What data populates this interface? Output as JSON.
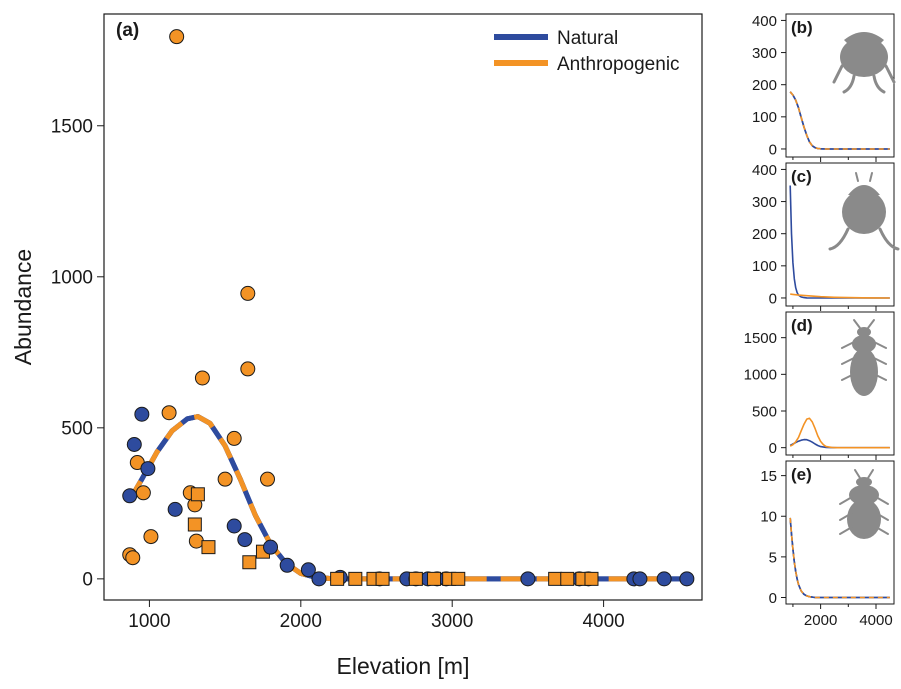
{
  "colors": {
    "natural": "#2E4B9E",
    "anthropogenic": "#F39325",
    "silhouette": "#8a8a8a",
    "axis": "#1a1a1a"
  },
  "chart_data": [
    {
      "panel": "(a)",
      "type": "scatter",
      "xlabel": "Elevation [m]",
      "ylabel": "Abundance",
      "xlim": [
        700,
        4650
      ],
      "ylim": [
        -70,
        1870
      ],
      "xticks": [
        1000,
        2000,
        3000,
        4000
      ],
      "yticks": [
        0,
        500,
        1000,
        1500
      ],
      "legend": {
        "placement": "top-right",
        "entries": [
          "Natural",
          "Anthropogenic"
        ]
      },
      "curves": [
        {
          "name": "Natural",
          "style": "solid",
          "x": [
            870,
            950,
            1050,
            1150,
            1250,
            1320,
            1400,
            1500,
            1600,
            1700,
            1800,
            1900,
            2000,
            2100,
            2200,
            2300,
            2500,
            3000,
            3500,
            4000,
            4550
          ],
          "y": [
            260,
            330,
            420,
            490,
            530,
            537,
            515,
            440,
            330,
            210,
            115,
            52,
            18,
            5,
            1,
            0,
            0,
            0,
            0,
            0,
            0
          ]
        },
        {
          "name": "Anthropogenic",
          "style": "dashed",
          "x": [
            870,
            950,
            1050,
            1150,
            1250,
            1320,
            1400,
            1500,
            1600,
            1700,
            1800,
            1900,
            2000,
            2100,
            2200,
            2300,
            2500,
            3000,
            3500,
            4000,
            4550
          ],
          "y": [
            260,
            330,
            420,
            490,
            530,
            537,
            515,
            440,
            330,
            210,
            115,
            52,
            18,
            5,
            1,
            0,
            0,
            0,
            0,
            0,
            0
          ]
        }
      ],
      "points": [
        {
          "x": 1180,
          "y": 1795,
          "group": "anthropogenic",
          "shape": "circle"
        },
        {
          "x": 1650,
          "y": 945,
          "group": "anthropogenic",
          "shape": "circle"
        },
        {
          "x": 1650,
          "y": 695,
          "group": "anthropogenic",
          "shape": "circle"
        },
        {
          "x": 1350,
          "y": 665,
          "group": "anthropogenic",
          "shape": "circle"
        },
        {
          "x": 1130,
          "y": 550,
          "group": "anthropogenic",
          "shape": "circle"
        },
        {
          "x": 1560,
          "y": 465,
          "group": "anthropogenic",
          "shape": "circle"
        },
        {
          "x": 920,
          "y": 385,
          "group": "anthropogenic",
          "shape": "circle"
        },
        {
          "x": 1780,
          "y": 330,
          "group": "anthropogenic",
          "shape": "circle"
        },
        {
          "x": 1500,
          "y": 330,
          "group": "anthropogenic",
          "shape": "circle"
        },
        {
          "x": 1270,
          "y": 285,
          "group": "anthropogenic",
          "shape": "circle"
        },
        {
          "x": 960,
          "y": 285,
          "group": "anthropogenic",
          "shape": "circle"
        },
        {
          "x": 1300,
          "y": 245,
          "group": "anthropogenic",
          "shape": "circle"
        },
        {
          "x": 1010,
          "y": 140,
          "group": "anthropogenic",
          "shape": "circle"
        },
        {
          "x": 1310,
          "y": 125,
          "group": "anthropogenic",
          "shape": "circle"
        },
        {
          "x": 870,
          "y": 80,
          "group": "anthropogenic",
          "shape": "circle"
        },
        {
          "x": 890,
          "y": 70,
          "group": "anthropogenic",
          "shape": "circle"
        },
        {
          "x": 1320,
          "y": 280,
          "group": "anthropogenic",
          "shape": "square"
        },
        {
          "x": 1300,
          "y": 180,
          "group": "anthropogenic",
          "shape": "square"
        },
        {
          "x": 1390,
          "y": 105,
          "group": "anthropogenic",
          "shape": "square"
        },
        {
          "x": 1750,
          "y": 90,
          "group": "anthropogenic",
          "shape": "square"
        },
        {
          "x": 1660,
          "y": 55,
          "group": "anthropogenic",
          "shape": "square"
        },
        {
          "x": 950,
          "y": 545,
          "group": "natural",
          "shape": "circle"
        },
        {
          "x": 900,
          "y": 445,
          "group": "natural",
          "shape": "circle"
        },
        {
          "x": 990,
          "y": 365,
          "group": "natural",
          "shape": "circle"
        },
        {
          "x": 870,
          "y": 275,
          "group": "natural",
          "shape": "circle"
        },
        {
          "x": 1170,
          "y": 230,
          "group": "natural",
          "shape": "circle"
        },
        {
          "x": 1560,
          "y": 175,
          "group": "natural",
          "shape": "circle"
        },
        {
          "x": 1630,
          "y": 130,
          "group": "natural",
          "shape": "circle"
        },
        {
          "x": 1800,
          "y": 105,
          "group": "natural",
          "shape": "circle"
        },
        {
          "x": 1910,
          "y": 45,
          "group": "natural",
          "shape": "circle"
        },
        {
          "x": 2050,
          "y": 30,
          "group": "natural",
          "shape": "circle"
        },
        {
          "x": 2120,
          "y": 0,
          "group": "natural",
          "shape": "circle"
        },
        {
          "x": 2260,
          "y": 5,
          "group": "natural",
          "shape": "circle"
        },
        {
          "x": 2520,
          "y": 0,
          "group": "natural",
          "shape": "circle"
        },
        {
          "x": 2700,
          "y": 0,
          "group": "natural",
          "shape": "circle"
        },
        {
          "x": 2760,
          "y": 0,
          "group": "natural",
          "shape": "circle"
        },
        {
          "x": 2840,
          "y": 0,
          "group": "natural",
          "shape": "circle"
        },
        {
          "x": 2900,
          "y": 0,
          "group": "natural",
          "shape": "circle"
        },
        {
          "x": 2960,
          "y": 0,
          "group": "natural",
          "shape": "circle"
        },
        {
          "x": 3500,
          "y": 0,
          "group": "natural",
          "shape": "circle"
        },
        {
          "x": 3840,
          "y": 0,
          "group": "natural",
          "shape": "circle"
        },
        {
          "x": 3900,
          "y": 0,
          "group": "natural",
          "shape": "circle"
        },
        {
          "x": 4200,
          "y": 0,
          "group": "natural",
          "shape": "circle"
        },
        {
          "x": 4240,
          "y": 0,
          "group": "natural",
          "shape": "circle"
        },
        {
          "x": 4400,
          "y": 0,
          "group": "natural",
          "shape": "circle"
        },
        {
          "x": 4550,
          "y": 0,
          "group": "natural",
          "shape": "circle"
        },
        {
          "x": 2240,
          "y": 0,
          "group": "anthropogenic",
          "shape": "square"
        },
        {
          "x": 2360,
          "y": 0,
          "group": "anthropogenic",
          "shape": "square"
        },
        {
          "x": 2480,
          "y": 0,
          "group": "anthropogenic",
          "shape": "square"
        },
        {
          "x": 2540,
          "y": 0,
          "group": "anthropogenic",
          "shape": "square"
        },
        {
          "x": 2760,
          "y": 0,
          "group": "anthropogenic",
          "shape": "square"
        },
        {
          "x": 2880,
          "y": 0,
          "group": "anthropogenic",
          "shape": "square"
        },
        {
          "x": 2980,
          "y": 0,
          "group": "anthropogenic",
          "shape": "square"
        },
        {
          "x": 3040,
          "y": 0,
          "group": "anthropogenic",
          "shape": "square"
        },
        {
          "x": 3680,
          "y": 0,
          "group": "anthropogenic",
          "shape": "square"
        },
        {
          "x": 3760,
          "y": 0,
          "group": "anthropogenic",
          "shape": "square"
        },
        {
          "x": 3860,
          "y": 0,
          "group": "anthropogenic",
          "shape": "square"
        },
        {
          "x": 3920,
          "y": 0,
          "group": "anthropogenic",
          "shape": "square"
        }
      ]
    },
    {
      "panel": "(b)",
      "type": "line",
      "xlim": [
        750,
        4650
      ],
      "ylim": [
        -25,
        420
      ],
      "xticks": [
        2000,
        4000
      ],
      "yticks": [
        0,
        100,
        200,
        300,
        400
      ],
      "show_xtick_labels": false,
      "silhouette": "beetle-b",
      "series": [
        {
          "name": "Natural",
          "style": "solid",
          "x": [
            900,
            1000,
            1100,
            1200,
            1300,
            1400,
            1500,
            1600,
            1700,
            1800,
            1900,
            2000,
            2200,
            2500,
            3000,
            3500,
            4000,
            4500
          ],
          "y": [
            178,
            168,
            152,
            128,
            98,
            68,
            42,
            22,
            10,
            4,
            1.5,
            0.5,
            0,
            0,
            0,
            0,
            0,
            0
          ]
        },
        {
          "name": "Anthropogenic",
          "style": "dashed",
          "x": [
            900,
            1000,
            1100,
            1200,
            1300,
            1400,
            1500,
            1600,
            1700,
            1800,
            1900,
            2000,
            2200,
            2500,
            3000,
            3500,
            4000,
            4500
          ],
          "y": [
            178,
            168,
            152,
            128,
            98,
            68,
            42,
            22,
            10,
            4,
            1.5,
            0.5,
            0,
            0,
            0,
            0,
            0,
            0
          ]
        }
      ]
    },
    {
      "panel": "(c)",
      "type": "line",
      "xlim": [
        750,
        4650
      ],
      "ylim": [
        -25,
        420
      ],
      "xticks": [
        2000,
        4000
      ],
      "yticks": [
        0,
        100,
        200,
        300,
        400
      ],
      "show_xtick_labels": false,
      "silhouette": "beetle-c",
      "series": [
        {
          "name": "Natural",
          "style": "solid",
          "x": [
            900,
            950,
            1000,
            1050,
            1100,
            1150,
            1200,
            1300,
            1400,
            1500,
            1700,
            2000,
            2500,
            3000,
            3500,
            4000,
            4500
          ],
          "y": [
            350,
            200,
            110,
            60,
            32,
            17,
            9,
            3,
            1,
            0.3,
            0,
            0,
            0,
            0,
            0,
            0,
            0
          ]
        },
        {
          "name": "Anthropogenic",
          "style": "solid",
          "x": [
            900,
            1000,
            1200,
            1500,
            2000,
            2500,
            3000,
            3500,
            4000,
            4500
          ],
          "y": [
            12,
            11,
            9,
            7,
            4,
            2,
            1,
            0.5,
            0.2,
            0
          ]
        }
      ]
    },
    {
      "panel": "(d)",
      "type": "line",
      "xlim": [
        750,
        4650
      ],
      "ylim": [
        -100,
        1850
      ],
      "xticks": [
        2000,
        4000
      ],
      "yticks": [
        0,
        500,
        1000,
        1500
      ],
      "show_xtick_labels": false,
      "silhouette": "beetle-d",
      "series": [
        {
          "name": "Natural",
          "style": "solid",
          "x": [
            900,
            1000,
            1100,
            1200,
            1300,
            1400,
            1500,
            1600,
            1700,
            1800,
            1900,
            2000,
            2200,
            2500,
            3000,
            3500,
            4000,
            4500
          ],
          "y": [
            30,
            50,
            70,
            88,
            102,
            110,
            108,
            95,
            74,
            50,
            30,
            15,
            3,
            0,
            0,
            0,
            0,
            0
          ]
        },
        {
          "name": "Anthropogenic",
          "style": "solid",
          "x": [
            900,
            1000,
            1100,
            1200,
            1300,
            1400,
            1500,
            1600,
            1700,
            1800,
            1900,
            2000,
            2100,
            2200,
            2400,
            2600,
            3000,
            3500,
            4000,
            4500
          ],
          "y": [
            20,
            40,
            80,
            140,
            230,
            320,
            390,
            400,
            350,
            260,
            160,
            85,
            40,
            15,
            3,
            0,
            0,
            0,
            0,
            0
          ]
        }
      ]
    },
    {
      "panel": "(e)",
      "type": "line",
      "xlim": [
        750,
        4650
      ],
      "ylim": [
        -0.8,
        16.8
      ],
      "xticks": [
        2000,
        4000
      ],
      "yticks": [
        0,
        5,
        10,
        15
      ],
      "show_xtick_labels": true,
      "silhouette": "beetle-e",
      "series": [
        {
          "name": "Natural",
          "style": "solid",
          "x": [
            900,
            950,
            1000,
            1050,
            1100,
            1150,
            1200,
            1300,
            1400,
            1500,
            1600,
            1800,
            2000,
            2500,
            3000,
            3500,
            4000,
            4500
          ],
          "y": [
            9.8,
            7.8,
            6.0,
            4.4,
            3.2,
            2.3,
            1.6,
            0.8,
            0.4,
            0.2,
            0.1,
            0,
            0,
            0,
            0,
            0,
            0,
            0
          ]
        },
        {
          "name": "Anthropogenic",
          "style": "dashed",
          "x": [
            900,
            950,
            1000,
            1050,
            1100,
            1150,
            1200,
            1300,
            1400,
            1500,
            1600,
            1800,
            2000,
            2500,
            3000,
            3500,
            4000,
            4500
          ],
          "y": [
            9.8,
            7.8,
            6.0,
            4.4,
            3.2,
            2.3,
            1.6,
            0.8,
            0.4,
            0.2,
            0.1,
            0,
            0,
            0,
            0,
            0,
            0,
            0
          ]
        }
      ]
    }
  ]
}
